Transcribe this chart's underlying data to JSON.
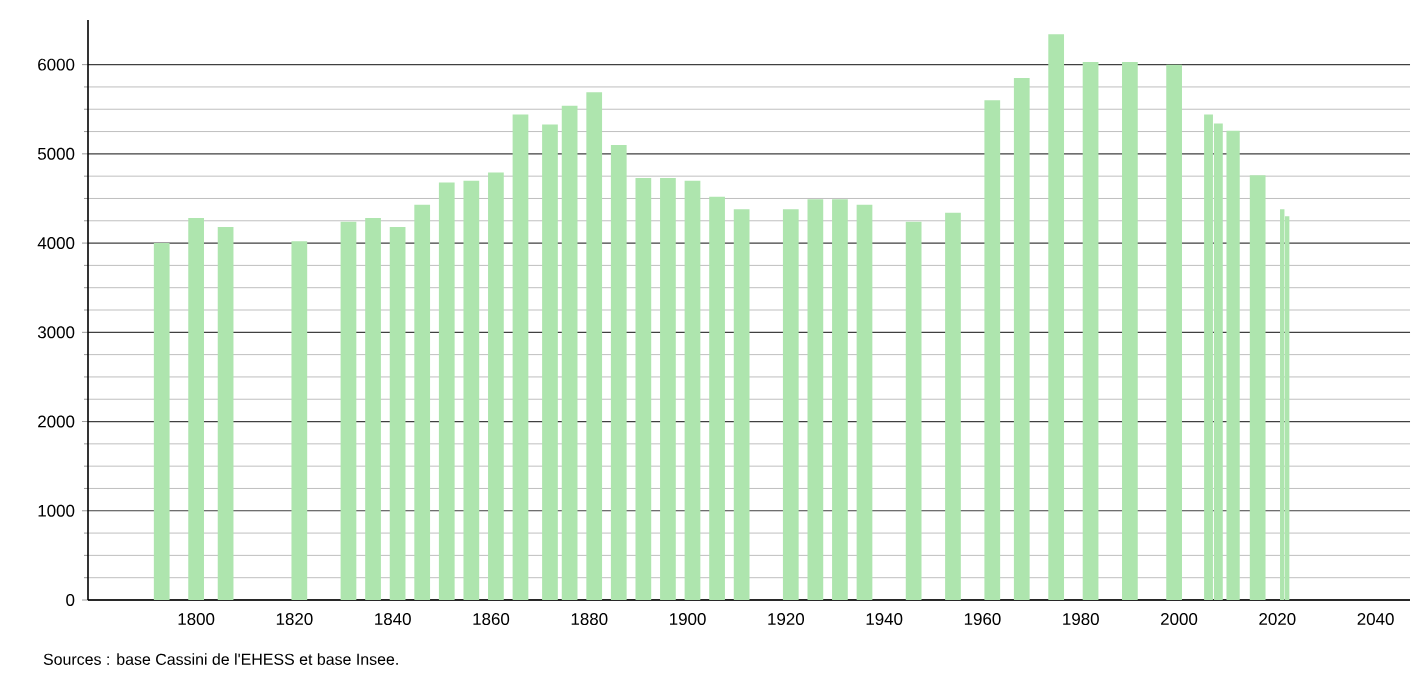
{
  "chart_data": {
    "type": "bar",
    "x": [
      1793,
      1800,
      1806,
      1821,
      1831,
      1836,
      1841,
      1846,
      1851,
      1856,
      1861,
      1866,
      1872,
      1876,
      1881,
      1886,
      1891,
      1896,
      1901,
      1906,
      1911,
      1921,
      1926,
      1931,
      1936,
      1946,
      1954,
      1962,
      1968,
      1975,
      1982,
      1990,
      1999,
      2006,
      2008,
      2011,
      2016,
      2021,
      2022
    ],
    "values": [
      4000,
      4280,
      4180,
      4020,
      4240,
      4280,
      4180,
      4430,
      4680,
      4700,
      4790,
      5440,
      5330,
      5540,
      5690,
      5100,
      4730,
      4730,
      4700,
      4520,
      4380,
      4380,
      4490,
      4490,
      4430,
      4240,
      4340,
      5600,
      5850,
      6340,
      6030,
      6030,
      6000,
      5440,
      5340,
      5260,
      4760,
      4380,
      4300
    ],
    "color": "#aee5ae",
    "xlim": [
      1778,
      2047
    ],
    "xticks": [
      1800,
      1820,
      1840,
      1860,
      1880,
      1900,
      1920,
      1940,
      1960,
      1980,
      2000,
      2020,
      2040
    ],
    "ylim": [
      0,
      6500
    ],
    "yticks": [
      0,
      1000,
      2000,
      3000,
      4000,
      5000,
      6000
    ],
    "grid": "y",
    "annotations": [
      "Sources : base Cassini de l'EHESS et base Insee."
    ]
  }
}
